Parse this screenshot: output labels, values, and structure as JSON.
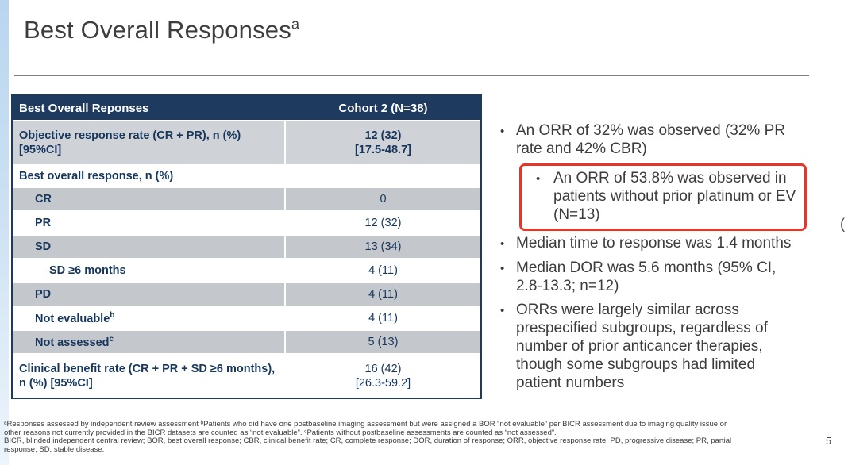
{
  "slide": {
    "title": "Best Overall Responses",
    "title_sup": "a",
    "page_number": "5",
    "edge_artifact": "("
  },
  "table": {
    "header": {
      "label_col": "Best Overall Reponses",
      "value_col": "Cohort 2 (N=38)"
    },
    "rows": [
      {
        "label": "Objective response rate (CR + PR), n (%) [95%CI]",
        "value": "12 (32)",
        "value2": "[17.5-48.7]"
      },
      {
        "label": "Best overall response, n (%)"
      },
      {
        "label": "CR",
        "value": "0"
      },
      {
        "label": "PR",
        "value": "12 (32)"
      },
      {
        "label": "SD",
        "value": "13 (34)"
      },
      {
        "label": "SD ≥6 months",
        "value": "4 (11)"
      },
      {
        "label": "PD",
        "value": "4 (11)"
      },
      {
        "label": "Not evaluable",
        "sup": "b",
        "value": "4 (11)"
      },
      {
        "label": "Not assessed",
        "sup": "c",
        "value": "5 (13)"
      },
      {
        "label": "Clinical benefit rate (CR + PR + SD ≥6 months), n (%) [95%CI]",
        "value": "16 (42)",
        "value2": "[26.3-59.2]"
      }
    ]
  },
  "bullets": [
    {
      "text": "An ORR of 32% was observed (32% PR rate and 42% CBR)"
    },
    {
      "text": "An ORR of 53.8% was observed in patients without prior platinum or EV (N=13)",
      "highlighted": true
    },
    {
      "text": "Median time to response was 1.4 months"
    },
    {
      "text": "Median DOR was 5.6 months (95% CI, 2.8-13.3; n=12)"
    },
    {
      "text": "ORRs were largely similar across prespecified subgroups, regardless of number of prior anticancer therapies, though some subgroups had limited patient numbers"
    }
  ],
  "footnotes": {
    "line1": "ᵃResponses assessed by independent review assessment ᵇPatients who did have one postbaseline imaging assessment but were assigned a BOR “not evaluable” per BICR assessment due to imaging quality issue or",
    "line2": "other reasons not currently provided in the BICR datasets are counted as “not evaluable”. ᶜPatients without postbaseline assessments are counted as “not assessed”.",
    "line3": "BICR, blinded independent central review; BOR, best overall response; CBR, clinical benefit rate; CR, complete response; DOR, duration of response; ORR, objective response rate; PD, progressive disease; PR, partial",
    "line4": "response; SD, stable disease."
  },
  "colors": {
    "navy": "#1E3A5F",
    "table_text": "#17365D",
    "gray1": "#CFD2D6",
    "gray2": "#C4C8CD",
    "red": "#E8352A",
    "rule": "#7F7F7F",
    "footnote": "#3A3A3A",
    "strip_top": "#B9D6EF",
    "strip_mid": "#CCE1F3",
    "strip_bottom": "#EDF5FB"
  }
}
